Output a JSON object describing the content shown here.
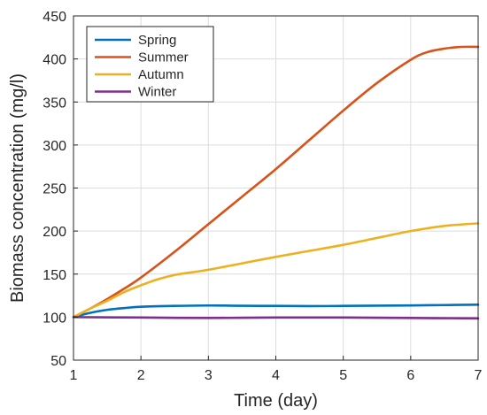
{
  "chart_data": {
    "type": "line",
    "title": "",
    "xlabel": "Time (day)",
    "ylabel": "Biomass concentration (mg/l)",
    "xlim": [
      1,
      7
    ],
    "ylim": [
      50,
      450
    ],
    "xticks": [
      1,
      2,
      3,
      4,
      5,
      6,
      7
    ],
    "yticks": [
      50,
      100,
      150,
      200,
      250,
      300,
      350,
      400,
      450
    ],
    "grid": true,
    "legend_position": "top-left",
    "series": [
      {
        "name": "Spring",
        "color": "#0072BD",
        "x": [
          1,
          1.25,
          1.5,
          1.75,
          2,
          2.5,
          3,
          3.5,
          4,
          4.5,
          5,
          5.5,
          6,
          6.5,
          7
        ],
        "y": [
          100,
          105,
          108.5,
          110.5,
          112,
          113,
          113.5,
          113.2,
          113,
          112.8,
          113,
          113.3,
          113.6,
          114,
          114.5
        ]
      },
      {
        "name": "Summer",
        "color": "#D95319",
        "x": [
          1,
          1.25,
          1.5,
          1.75,
          2,
          2.5,
          3,
          3.5,
          4,
          4.5,
          5,
          5.5,
          6,
          6.25,
          6.5,
          6.75,
          7
        ],
        "y": [
          100,
          110,
          121,
          133,
          146,
          176,
          208,
          240,
          272,
          306,
          340,
          372,
          399,
          408,
          412,
          414,
          414
        ]
      },
      {
        "name": "Autumn",
        "color": "#EDB120",
        "x": [
          1,
          1.25,
          1.5,
          1.75,
          2,
          2.25,
          2.5,
          2.75,
          3,
          3.5,
          4,
          4.5,
          5,
          5.5,
          6,
          6.5,
          7
        ],
        "y": [
          100,
          110,
          119,
          129,
          137,
          144,
          149,
          152,
          155,
          162.5,
          170,
          177,
          184,
          192,
          200,
          206,
          209
        ]
      },
      {
        "name": "Winter",
        "color": "#7E2F8E",
        "x": [
          1,
          2,
          3,
          4,
          5,
          6,
          7
        ],
        "y": [
          100,
          99.5,
          99,
          99.5,
          99.5,
          99,
          98.5
        ]
      }
    ]
  }
}
